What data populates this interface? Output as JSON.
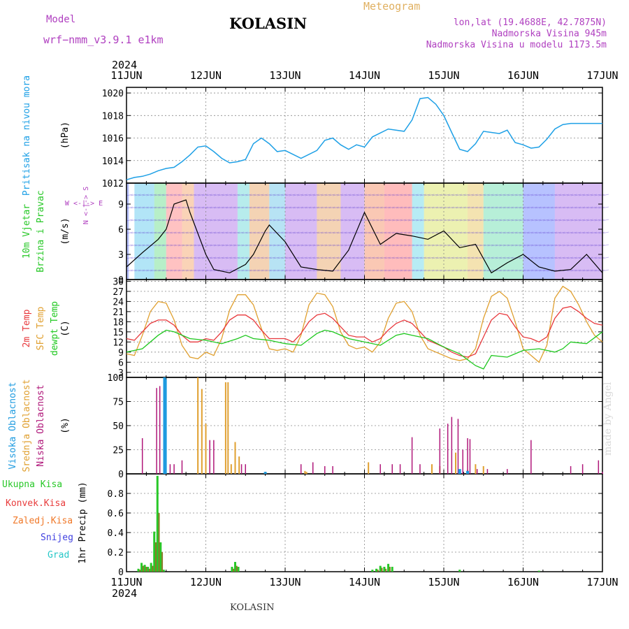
{
  "header": {
    "model_label": "Model",
    "model_name": "wrf−nmm_v3.9.1  e1km",
    "title": "KOLASIN",
    "meteogram": "Meteogram",
    "lonlat": "lon,lat (19.4688E, 42.7875N)",
    "elevation": "Nadmorska Visina 945m",
    "model_elevation": "Nadmorska Visina u modelu 1173.5m",
    "bottom_title": "KOLASIN",
    "credit": "made by Angel"
  },
  "time_axis": {
    "year": "2024",
    "labels": [
      "11JUN",
      "12JUN",
      "13JUN",
      "14JUN",
      "15JUN",
      "16JUN",
      "17JUN"
    ]
  },
  "colors": {
    "pressure": "#1ea0e6",
    "temp2m": "#e8383c",
    "sfc_temp": "#e0a030",
    "dewpt": "#1ec81e",
    "high_cloud": "#1e9be0",
    "mid_cloud": "#e0a030",
    "low_cloud": "#b0187a",
    "total_precip": "#28c828",
    "conv_precip": "#e83c3c",
    "frozen_precip": "#f07828",
    "snow": "#4040e0",
    "hail": "#28c8c8",
    "magenta_text": "#b040c0",
    "orange_text": "#e0b060"
  },
  "chart_data": [
    {
      "type": "line",
      "panel": "pressure",
      "ylabel_colored": "Pritisak na nivou mora",
      "ylabel": "(hPa)",
      "ylim": [
        1012,
        1020.5
      ],
      "yticks": [
        "1012",
        "1014",
        "1016",
        "1018",
        "1020"
      ],
      "x_unit": "days since 11JUN 00UTC",
      "series": [
        {
          "name": "Pritisak na nivou mora",
          "x": [
            0,
            0.1,
            0.2,
            0.3,
            0.4,
            0.5,
            0.6,
            0.7,
            0.8,
            0.9,
            1.0,
            1.1,
            1.2,
            1.3,
            1.4,
            1.5,
            1.6,
            1.7,
            1.8,
            1.9,
            2.0,
            2.2,
            2.4,
            2.5,
            2.6,
            2.7,
            2.8,
            2.9,
            3.0,
            3.1,
            3.3,
            3.5,
            3.6,
            3.7,
            3.8,
            3.9,
            4.0,
            4.1,
            4.2,
            4.3,
            4.4,
            4.5,
            4.6,
            4.7,
            4.8,
            4.9,
            5.0,
            5.1,
            5.2,
            5.3,
            5.4,
            5.5,
            5.6,
            5.7,
            5.8,
            5.9,
            6.0
          ],
          "y": [
            1012.3,
            1012.5,
            1012.6,
            1012.8,
            1013.1,
            1013.3,
            1013.4,
            1013.9,
            1014.5,
            1015.2,
            1015.3,
            1014.8,
            1014.2,
            1013.8,
            1013.9,
            1014.1,
            1015.5,
            1016.0,
            1015.5,
            1014.8,
            1014.9,
            1014.2,
            1014.9,
            1015.8,
            1016.0,
            1015.4,
            1015.0,
            1015.4,
            1015.2,
            1016.1,
            1016.8,
            1016.6,
            1017.6,
            1019.5,
            1019.6,
            1019.0,
            1018.0,
            1016.5,
            1015.0,
            1014.8,
            1015.5,
            1016.6,
            1016.5,
            1016.4,
            1016.7,
            1015.6,
            1015.4,
            1015.1,
            1015.2,
            1015.9,
            1016.8,
            1017.2,
            1017.3,
            1017.3,
            1017.3,
            1017.3,
            1017.3
          ]
        }
      ]
    },
    {
      "type": "line",
      "panel": "wind",
      "ylabel_colored": "10m Vjetar Brzina i Pravac",
      "ylabel": "(m/s)",
      "ylim": [
        0,
        11.5
      ],
      "yticks": [
        "0",
        "3",
        "6",
        "9"
      ],
      "compass_legend": "W  <-|->  E",
      "compass_vertical": "N <-|-> S",
      "x_unit": "days since 11JUN 00UTC",
      "series": [
        {
          "name": "wind speed",
          "x": [
            0,
            0.2,
            0.4,
            0.5,
            0.6,
            0.75,
            0.8,
            1.0,
            1.1,
            1.3,
            1.5,
            1.6,
            1.75,
            1.8,
            2.0,
            2.2,
            2.4,
            2.6,
            2.8,
            3.0,
            3.2,
            3.4,
            3.6,
            3.8,
            4.0,
            4.2,
            4.4,
            4.6,
            4.8,
            5.0,
            5.2,
            5.4,
            5.6,
            5.8,
            6.0
          ],
          "y": [
            1.5,
            3.2,
            4.8,
            6.0,
            9.0,
            9.5,
            8.0,
            3.0,
            1.2,
            0.8,
            1.8,
            3.0,
            5.8,
            6.5,
            4.5,
            1.5,
            1.2,
            1.0,
            3.5,
            8.0,
            4.2,
            5.5,
            5.2,
            4.8,
            5.8,
            3.8,
            4.2,
            0.8,
            2.0,
            3.0,
            1.5,
            1.0,
            1.2,
            3.0,
            0.8
          ]
        }
      ]
    },
    {
      "type": "line",
      "panel": "temperature",
      "ylabel_colored": [
        "2m Temp",
        "SFC Temp",
        "dewpt Temp"
      ],
      "ylabel": "(C)",
      "ylim": [
        1.5,
        30.5
      ],
      "yticks": [
        "3",
        "6",
        "9",
        "12",
        "15",
        "18",
        "21",
        "24",
        "27",
        "30"
      ],
      "x_unit": "days since 11JUN 00UTC",
      "series": [
        {
          "name": "2m Temp",
          "x": [
            0,
            0.1,
            0.2,
            0.3,
            0.4,
            0.5,
            0.6,
            0.7,
            0.8,
            0.9,
            1.0,
            1.1,
            1.2,
            1.3,
            1.4,
            1.5,
            1.6,
            1.7,
            1.8,
            1.9,
            2.0,
            2.1,
            2.2,
            2.3,
            2.4,
            2.5,
            2.6,
            2.7,
            2.8,
            2.9,
            3.0,
            3.1,
            3.2,
            3.3,
            3.4,
            3.5,
            3.6,
            3.7,
            3.8,
            3.9,
            4.0,
            4.1,
            4.2,
            4.3,
            4.4,
            4.5,
            4.6,
            4.7,
            4.8,
            4.9,
            5.0,
            5.1,
            5.2,
            5.3,
            5.4,
            5.5,
            5.6,
            5.7,
            5.8,
            5.9,
            6.0
          ],
          "y": [
            13,
            12.5,
            15,
            17.5,
            18.5,
            18.5,
            17,
            14,
            12,
            12,
            13,
            12.5,
            15,
            18.5,
            20,
            20,
            18.5,
            15.5,
            13,
            13,
            13,
            12,
            14.5,
            18,
            20,
            20.5,
            19,
            16.5,
            14,
            13.5,
            13.5,
            12,
            13,
            15.5,
            17.5,
            18.5,
            17.5,
            15,
            12.5,
            11.5,
            10.5,
            9,
            8,
            7.5,
            8.5,
            13.5,
            18.5,
            20.5,
            20,
            16.5,
            13.5,
            13,
            12,
            13.5,
            19,
            22,
            22.5,
            21,
            19,
            17.5,
            17
          ]
        },
        {
          "name": "SFC Temp",
          "x": [
            0,
            0.1,
            0.2,
            0.3,
            0.4,
            0.5,
            0.6,
            0.7,
            0.8,
            0.9,
            1.0,
            1.1,
            1.2,
            1.3,
            1.4,
            1.5,
            1.6,
            1.7,
            1.8,
            1.9,
            2.0,
            2.1,
            2.2,
            2.3,
            2.4,
            2.5,
            2.6,
            2.7,
            2.8,
            2.9,
            3.0,
            3.1,
            3.2,
            3.3,
            3.4,
            3.5,
            3.6,
            3.7,
            3.8,
            3.9,
            4.0,
            4.1,
            4.2,
            4.3,
            4.4,
            4.5,
            4.6,
            4.7,
            4.8,
            4.9,
            5.0,
            5.1,
            5.2,
            5.3,
            5.4,
            5.5,
            5.6,
            5.7,
            5.8,
            5.9,
            6.0
          ],
          "y": [
            8.5,
            8,
            14,
            21,
            24,
            23.5,
            18.5,
            11,
            7.5,
            7,
            9,
            8,
            13,
            21.5,
            26,
            26,
            23,
            16,
            10,
            9.5,
            10,
            9,
            14,
            23,
            26.5,
            26,
            22.5,
            15,
            11,
            10,
            10.5,
            9,
            12,
            19,
            23.5,
            24,
            21,
            14,
            10,
            9,
            8,
            7,
            6.5,
            7,
            10,
            19,
            25.5,
            27,
            25,
            18,
            10,
            8,
            6,
            11,
            25,
            28.5,
            27,
            23,
            18,
            14,
            12
          ]
        },
        {
          "name": "dewpt Temp",
          "x": [
            0,
            0.2,
            0.4,
            0.5,
            0.6,
            0.8,
            1.0,
            1.2,
            1.4,
            1.5,
            1.6,
            1.8,
            2.0,
            2.2,
            2.4,
            2.5,
            2.6,
            2.8,
            3.0,
            3.2,
            3.4,
            3.5,
            3.6,
            3.8,
            4.0,
            4.2,
            4.4,
            4.5,
            4.6,
            4.8,
            5.0,
            5.2,
            5.4,
            5.5,
            5.6,
            5.8,
            6.0
          ],
          "y": [
            9,
            10,
            14,
            15.5,
            15,
            13,
            12.5,
            11.5,
            13,
            14,
            13,
            12.5,
            11.5,
            11,
            14.5,
            15.5,
            15,
            13,
            12,
            11,
            14,
            14.5,
            14,
            13,
            10.5,
            8.5,
            5,
            4,
            8,
            7.5,
            9.5,
            10,
            9,
            10,
            12,
            11.5,
            15
          ]
        }
      ]
    },
    {
      "type": "bar",
      "panel": "clouds",
      "ylabel_colored": [
        "Visoka Oblacnost",
        "Srednja Oblacnost",
        "Niska Oblacnost"
      ],
      "ylabel": "(%)",
      "ylim": [
        0,
        100
      ],
      "yticks": [
        "0",
        "25",
        "50",
        "75",
        "100"
      ],
      "x_unit": "days since 11JUN 00UTC",
      "series": [
        {
          "name": "Visoka Oblacnost",
          "x": [
            0.48,
            0.49,
            1.75,
            4.2,
            4.3
          ],
          "values": [
            100,
            98,
            2,
            5,
            3
          ]
        },
        {
          "name": "Srednja Oblacnost",
          "x": [
            0.9,
            0.95,
            1.0,
            1.25,
            1.28,
            1.32,
            1.37,
            1.42,
            2.25,
            2.27,
            3.05,
            3.85,
            3.95,
            4.15,
            4.3,
            4.4,
            4.5
          ],
          "values": [
            100,
            88,
            52,
            95,
            95,
            10,
            33,
            18,
            3,
            2,
            12,
            10,
            8,
            22,
            4,
            10,
            8
          ]
        },
        {
          "name": "Niska Oblacnost",
          "x": [
            0.2,
            0.38,
            0.42,
            0.55,
            0.6,
            0.7,
            1.05,
            1.1,
            1.45,
            1.5,
            2.2,
            2.35,
            2.5,
            2.6,
            3.2,
            3.35,
            3.45,
            3.6,
            3.7,
            3.95,
            4.05,
            4.1,
            4.18,
            4.24,
            4.3,
            4.33,
            4.42,
            4.55,
            4.8,
            5.1,
            5.6,
            5.75,
            5.95,
            6.0
          ],
          "values": [
            37,
            89,
            91,
            10,
            10,
            14,
            35,
            35,
            10,
            10,
            10,
            12,
            8,
            8,
            10,
            10,
            10,
            38,
            10,
            47,
            52,
            59,
            57,
            25,
            37,
            36,
            5,
            5,
            5,
            35,
            8,
            10,
            14,
            2
          ]
        }
      ]
    },
    {
      "type": "bar",
      "panel": "precipitation",
      "ylabel": "1hr Precip (mm)",
      "legend": [
        "Ukupna Kisa",
        "Konvek.Kisa",
        "Zaledj.Kisa",
        "Snijeg",
        "Grad"
      ],
      "ylim": [
        0,
        1.0
      ],
      "yticks": [
        "0",
        "0.2",
        "0.4",
        "0.6",
        "0.8"
      ],
      "x_unit": "days since 11JUN 00UTC",
      "series": [
        {
          "name": "Ukupna Kisa",
          "x": [
            0.15,
            0.19,
            0.23,
            0.27,
            0.31,
            0.35,
            0.39,
            0.43,
            0.47,
            1.33,
            1.37,
            1.41,
            3.1,
            3.15,
            3.2,
            3.25,
            3.3,
            3.35,
            4.2,
            5.2
          ],
          "values": [
            0.03,
            0.09,
            0.07,
            0.05,
            0.09,
            0.41,
            0.98,
            0.3,
            0.02,
            0.05,
            0.1,
            0.05,
            0.02,
            0.03,
            0.06,
            0.05,
            0.08,
            0.05,
            0.02,
            0.01
          ]
        },
        {
          "name": "Konvek.Kisa",
          "x": [
            0.17,
            0.21,
            0.25,
            0.29,
            0.33,
            0.37,
            0.41,
            0.45,
            1.35,
            1.39,
            3.17,
            3.22,
            3.27,
            3.32
          ],
          "values": [
            0.02,
            0.06,
            0.05,
            0.03,
            0.06,
            0.3,
            0.6,
            0.2,
            0.03,
            0.06,
            0.02,
            0.04,
            0.03,
            0.05
          ]
        }
      ]
    }
  ]
}
